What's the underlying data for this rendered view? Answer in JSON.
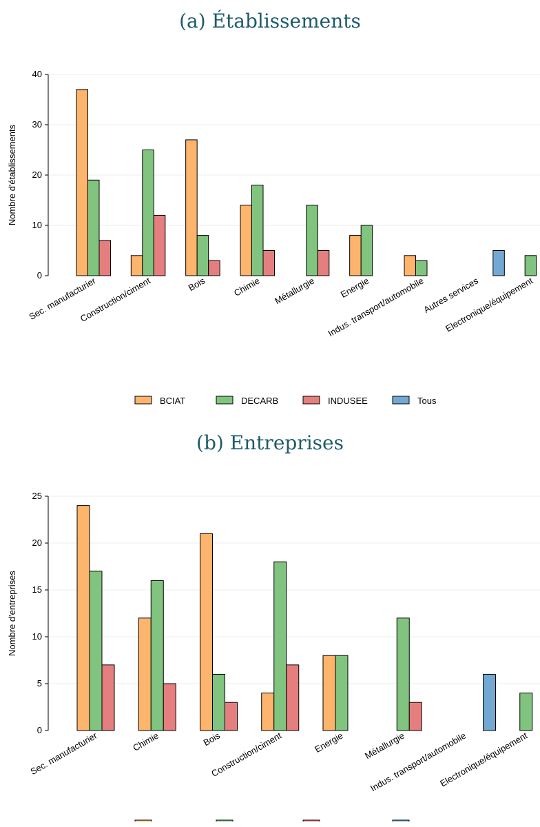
{
  "chart_data": [
    {
      "type": "bar",
      "title": "(a) Établissements",
      "ylabel": "Nombre d'établissements",
      "xlabel": "",
      "ylim": [
        0,
        40
      ],
      "yticks": [
        0,
        10,
        20,
        30,
        40
      ],
      "grid": true,
      "legend": "bottom",
      "categories": [
        "Sec. manufacturier",
        "Construction/ciment",
        "Bois",
        "Chimie",
        "Métallurgie",
        "Energie",
        "Indus. transport/automobile",
        "Autres services",
        "Electronique/équipement"
      ],
      "series": [
        {
          "name": "BCIAT",
          "color": "#fdb46c",
          "values": [
            37,
            4,
            27,
            14,
            null,
            8,
            4,
            null,
            null
          ]
        },
        {
          "name": "DECARB",
          "color": "#80c47f",
          "values": [
            19,
            25,
            8,
            18,
            14,
            10,
            3,
            null,
            4
          ]
        },
        {
          "name": "INDUSEE",
          "color": "#e57e7e",
          "values": [
            7,
            12,
            3,
            5,
            5,
            null,
            null,
            null,
            null
          ]
        },
        {
          "name": "Tous",
          "color": "#73a8d2",
          "values": [
            null,
            null,
            null,
            null,
            null,
            null,
            null,
            5,
            null
          ]
        }
      ]
    },
    {
      "type": "bar",
      "title": "(b) Entreprises",
      "ylabel": "Nombre d'entreprises",
      "xlabel": "",
      "ylim": [
        0,
        25
      ],
      "yticks": [
        0,
        5,
        10,
        15,
        20,
        25
      ],
      "grid": true,
      "legend": "bottom",
      "categories": [
        "Sec. manufacturier",
        "Chimie",
        "Bois",
        "Construction/ciment",
        "Energie",
        "Métallurgie",
        "Indus. transport/automobile",
        "Electronique/équipement"
      ],
      "series": [
        {
          "name": "BCIAT",
          "color": "#fdb46c",
          "values": [
            24,
            12,
            21,
            4,
            8,
            null,
            null,
            null
          ]
        },
        {
          "name": "DECARB",
          "color": "#80c47f",
          "values": [
            17,
            16,
            6,
            18,
            8,
            12,
            null,
            4
          ]
        },
        {
          "name": "INDUSEE",
          "color": "#e57e7e",
          "values": [
            7,
            5,
            3,
            7,
            null,
            3,
            null,
            null
          ]
        },
        {
          "name": "Tous",
          "color": "#73a8d2",
          "values": [
            null,
            null,
            null,
            null,
            null,
            null,
            6,
            null
          ]
        }
      ]
    }
  ]
}
